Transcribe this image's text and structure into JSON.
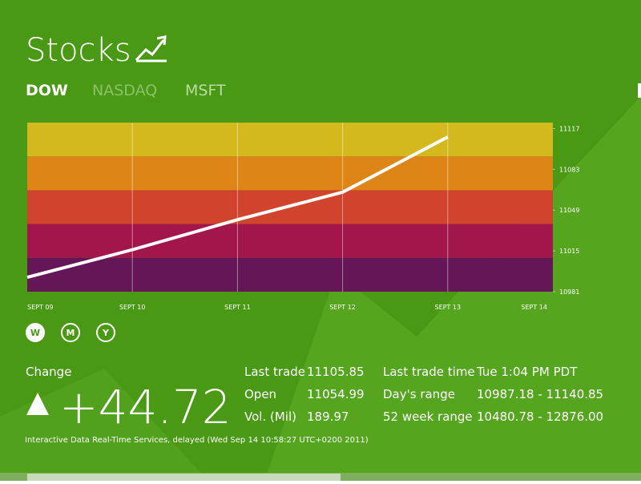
{
  "app": {
    "title": "Stocks",
    "tabs": [
      "DOW",
      "NASDAQ",
      "MSFT"
    ],
    "ranges": [
      "W",
      "M",
      "Y"
    ],
    "change_label": "Change",
    "change": "+44.72",
    "stats": [
      [
        "Last trade",
        "11105.85"
      ],
      [
        "Open",
        "11054.99"
      ],
      [
        "Vol. (Mil)",
        "189.97"
      ]
    ],
    "stats2": [
      [
        "Last trade time",
        "Tue 1:04 PM PDT"
      ],
      [
        "Day's range",
        "10987.18 - 11140.85"
      ],
      [
        "52 week range",
        "10480.78 - 12876.00"
      ]
    ],
    "footer": "Interactive Data Real-Time Services, delayed (Wed Sep 14 10:58:27 UTC+0200 2011)"
  },
  "chart_data": {
    "type": "line",
    "categories": [
      "SEPT 09",
      "SEPT 10",
      "SEPT 11",
      "SEPT 12",
      "SEPT 13",
      "SEPT 14"
    ],
    "series": [
      {
        "name": "DOW",
        "color": "#ffffff",
        "values": [
          10993,
          11016,
          11041,
          11064,
          11110,
          null
        ]
      }
    ],
    "ylim": [
      10981,
      11122
    ],
    "yticks": [
      10981,
      11015,
      11049,
      11083,
      11117
    ],
    "band_colors": [
      "#d3b91e",
      "#de8518",
      "#d0432c",
      "#a3164b",
      "#641657"
    ]
  }
}
